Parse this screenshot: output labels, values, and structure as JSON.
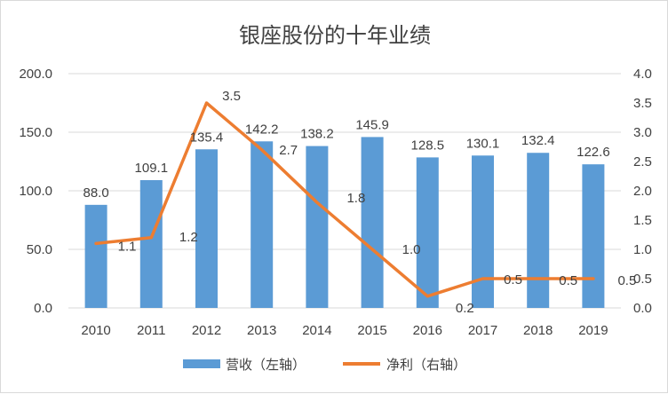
{
  "chart_data": {
    "type": "bar+line",
    "title": "银座股份的十年业绩",
    "categories": [
      "2010",
      "2011",
      "2012",
      "2013",
      "2014",
      "2015",
      "2016",
      "2017",
      "2018",
      "2019"
    ],
    "series": [
      {
        "name": "营收（左轴）",
        "type": "bar",
        "axis": "left",
        "color": "#5b9bd5",
        "values": [
          88.0,
          109.1,
          135.4,
          142.2,
          138.2,
          145.9,
          128.5,
          130.1,
          132.4,
          122.6
        ],
        "labels": [
          "88.0",
          "109.1",
          "135.4",
          "142.2",
          "138.2",
          "145.9",
          "128.5",
          "130.1",
          "132.4",
          "122.6"
        ]
      },
      {
        "name": "净利（右轴）",
        "type": "line",
        "axis": "right",
        "color": "#ed7d31",
        "values": [
          1.1,
          1.2,
          3.5,
          2.7,
          1.8,
          1.0,
          0.2,
          0.5,
          0.5,
          0.5
        ],
        "labels": [
          "1.1",
          "1.2",
          "3.5",
          "2.7",
          "1.8",
          "1.0",
          "0.2",
          "0.5",
          "0.5",
          "0.5"
        ]
      }
    ],
    "left_axis": {
      "ylim": [
        0,
        200
      ],
      "ticks": [
        0,
        50,
        100,
        150,
        200
      ],
      "tick_labels": [
        "0.0",
        "50.0",
        "100.0",
        "150.0",
        "200.0"
      ]
    },
    "right_axis": {
      "ylim": [
        0,
        4
      ],
      "ticks": [
        0,
        0.5,
        1,
        1.5,
        2,
        2.5,
        3,
        3.5,
        4
      ],
      "tick_labels": [
        "0.0",
        "0.5",
        "1.0",
        "1.5",
        "2.0",
        "2.5",
        "3.0",
        "3.5",
        "4.0"
      ]
    },
    "grid": true,
    "legend_position": "bottom"
  }
}
